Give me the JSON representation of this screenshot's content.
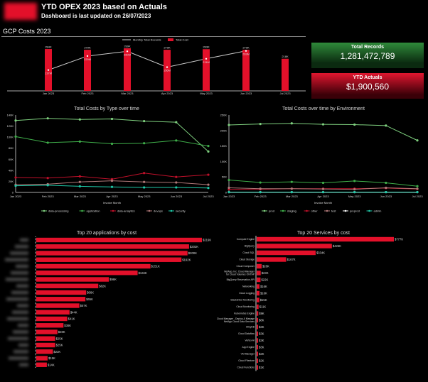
{
  "header": {
    "title": "YTD OPEX 2023 based on Actuals",
    "subtitle": "Dashboard is last updated on 26/07/2023",
    "logo": "company-logo"
  },
  "section_title": "GCP Costs 2023",
  "kpis": [
    {
      "label": "Total Records",
      "value": "1,281,472,789",
      "color": "#2f8a3a"
    },
    {
      "label": "YTD Actuals",
      "value": "$1,900,560",
      "color": "#e0162f"
    }
  ],
  "chart_data": [
    {
      "type": "bar",
      "title": "",
      "months": [
        "Jan 2023",
        "Feb 2023",
        "Mar 2023",
        "Apr 2023",
        "May 2023",
        "Jun 2023",
        "Jul 2023"
      ],
      "legend": [
        "Monthly Total Records",
        "Total Cost"
      ],
      "series": [
        {
          "name": "Total Cost",
          "type": "bar",
          "values": [
            284,
            279,
            289,
            279,
            283,
            279,
            218
          ],
          "labels": [
            "284K",
            "279K",
            "289K",
            "279K",
            "283K",
            "279K",
            "218K"
          ],
          "color": "#e3102a"
        },
        {
          "name": "Monthly Total Records",
          "type": "line",
          "values": [
            137,
            229,
            260,
            156,
            211,
            263,
            null
          ],
          "labels": [
            "137M",
            "229M",
            "260M",
            "156M",
            "211M",
            "263M",
            ""
          ],
          "color": "#ccc"
        }
      ]
    },
    {
      "type": "line",
      "title": "Total Costs by Type over time",
      "xlabel": "Invoice Month",
      "ylim": [
        0,
        140
      ],
      "yticks": [
        "0",
        "20K",
        "40K",
        "60K",
        "80K",
        "100K",
        "120K",
        "140K"
      ],
      "categories": [
        "Jan 2023",
        "Feb 2023",
        "Mar 2023",
        "Apr 2023",
        "May 2023",
        "Jun 2023",
        "Jul 2023"
      ],
      "legend": "bottom",
      "series": [
        {
          "name": "data-processing",
          "color": "#7fd17f",
          "values": [
            130,
            134,
            132,
            133,
            129,
            127,
            74
          ]
        },
        {
          "name": "application",
          "color": "#3fae4a",
          "values": [
            101,
            90,
            92,
            88,
            89,
            94,
            84
          ]
        },
        {
          "name": "data-analytics",
          "color": "#c0102a",
          "values": [
            27,
            26,
            29,
            24,
            35,
            28,
            32
          ]
        },
        {
          "name": "devops",
          "color": "#b07878",
          "values": [
            14,
            15,
            19,
            21,
            19,
            18,
            14
          ]
        },
        {
          "name": "security",
          "color": "#1fc9a8",
          "values": [
            12,
            13,
            11,
            10,
            9,
            9,
            8
          ]
        }
      ]
    },
    {
      "type": "line",
      "title": "Total Costs over time by Environment",
      "xlabel": "Invoice Month",
      "ylim": [
        0,
        250
      ],
      "yticks": [
        "0",
        "50K",
        "100K",
        "150K",
        "200K",
        "250K"
      ],
      "categories": [
        "Jan 2023",
        "Feb 2023",
        "Mar 2023",
        "Apr 2023",
        "May 2023",
        "Jun 2023",
        "Jul 2023"
      ],
      "legend": "bottom",
      "series": [
        {
          "name": "prod",
          "color": "#7fd17f",
          "values": [
            218,
            221,
            223,
            220,
            219,
            216,
            168
          ]
        },
        {
          "name": "staging",
          "color": "#3fae4a",
          "values": [
            40,
            32,
            34,
            31,
            37,
            31,
            20
          ]
        },
        {
          "name": "other",
          "color": "#c0102a",
          "values": [
            10,
            10,
            12,
            12,
            12,
            14,
            11
          ]
        },
        {
          "name": "test",
          "color": "#b07878",
          "values": [
            15,
            12,
            12,
            11,
            10,
            15,
            12
          ]
        },
        {
          "name": "preprod",
          "color": "#ffffff",
          "values": [
            1,
            1,
            1,
            1,
            1,
            1,
            1
          ]
        },
        {
          "name": "admin",
          "color": "#1fc9a8",
          "values": [
            1,
            1,
            1,
            1,
            1,
            1,
            1
          ]
        }
      ]
    },
    {
      "type": "bar",
      "orientation": "horizontal",
      "title": "Top 20 applications by cost",
      "names_blurred": true,
      "values": [
        219,
        202,
        200,
        192,
        151,
        134,
        96,
        82,
        66,
        65,
        57,
        44,
        41,
        36,
        28,
        25,
        25,
        22,
        15,
        14
      ],
      "labels": [
        "$219K",
        "$202K",
        "$200K",
        "$192K",
        "$151K",
        "$134K",
        "$96K",
        "$82K",
        "$66K",
        "$65K",
        "$57K",
        "$44K",
        "$41K",
        "$36K",
        "$28K",
        "$25K",
        "$25K",
        "$22K",
        "$15K",
        "$14K"
      ]
    },
    {
      "type": "bar",
      "orientation": "horizontal",
      "title": "Top 20 Services by cost",
      "categories": [
        "Compute Engine",
        "BigQuery",
        "Cloud SQL",
        "Cloud Storage",
        "Cloud Composer",
        "NetApp, Inc. Cloud Manager for Cloud Volumes ONTAP",
        "BigQuery Reservation API",
        "Networking",
        "Cloud Logging",
        "Stackdriver Monitoring",
        "Cloud Monitoring",
        "Kubernetes Engine",
        "Cloud Manager - Deploy & Manage NetApp Cloud Data Services",
        "AlloyDB",
        "Cloud Dataflow",
        "Vertex AI",
        "App Engine",
        "VM Manager",
        "Cloud Filestore",
        "Cloud Functions"
      ],
      "values": [
        777,
        426,
        334,
        167,
        28,
        23,
        22,
        16,
        16,
        15,
        11,
        9,
        8,
        3,
        3,
        3,
        3,
        2,
        2,
        1
      ],
      "labels": [
        "$777K",
        "$426K",
        "$334K",
        "$167K",
        "$28K",
        "$23K",
        "$22K",
        "$16K",
        "$16K",
        "$15K",
        "$11K",
        "$9K",
        "$8K",
        "$3K",
        "$3K",
        "$3K",
        "$3K",
        "$2K",
        "$2K",
        "$1K"
      ]
    }
  ]
}
